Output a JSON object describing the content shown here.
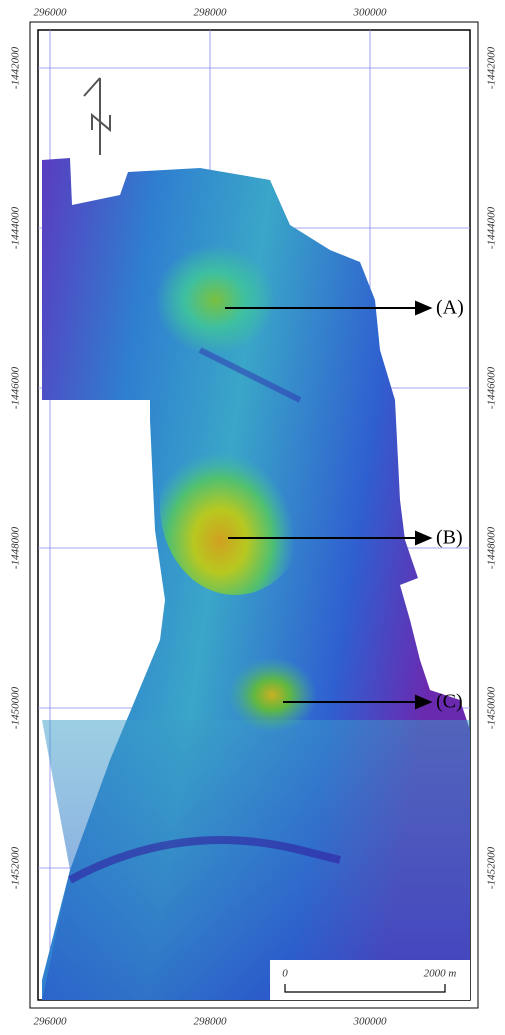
{
  "map": {
    "x_labels": [
      296000,
      298000,
      300000
    ],
    "y_labels": [
      -1442000,
      -1444000,
      -1446000,
      -1448000,
      -1450000,
      -1452000
    ],
    "annotations": [
      "(A)",
      "(B)",
      "(C)"
    ],
    "scale_bar": {
      "start": "0",
      "end": "2000 m"
    }
  }
}
